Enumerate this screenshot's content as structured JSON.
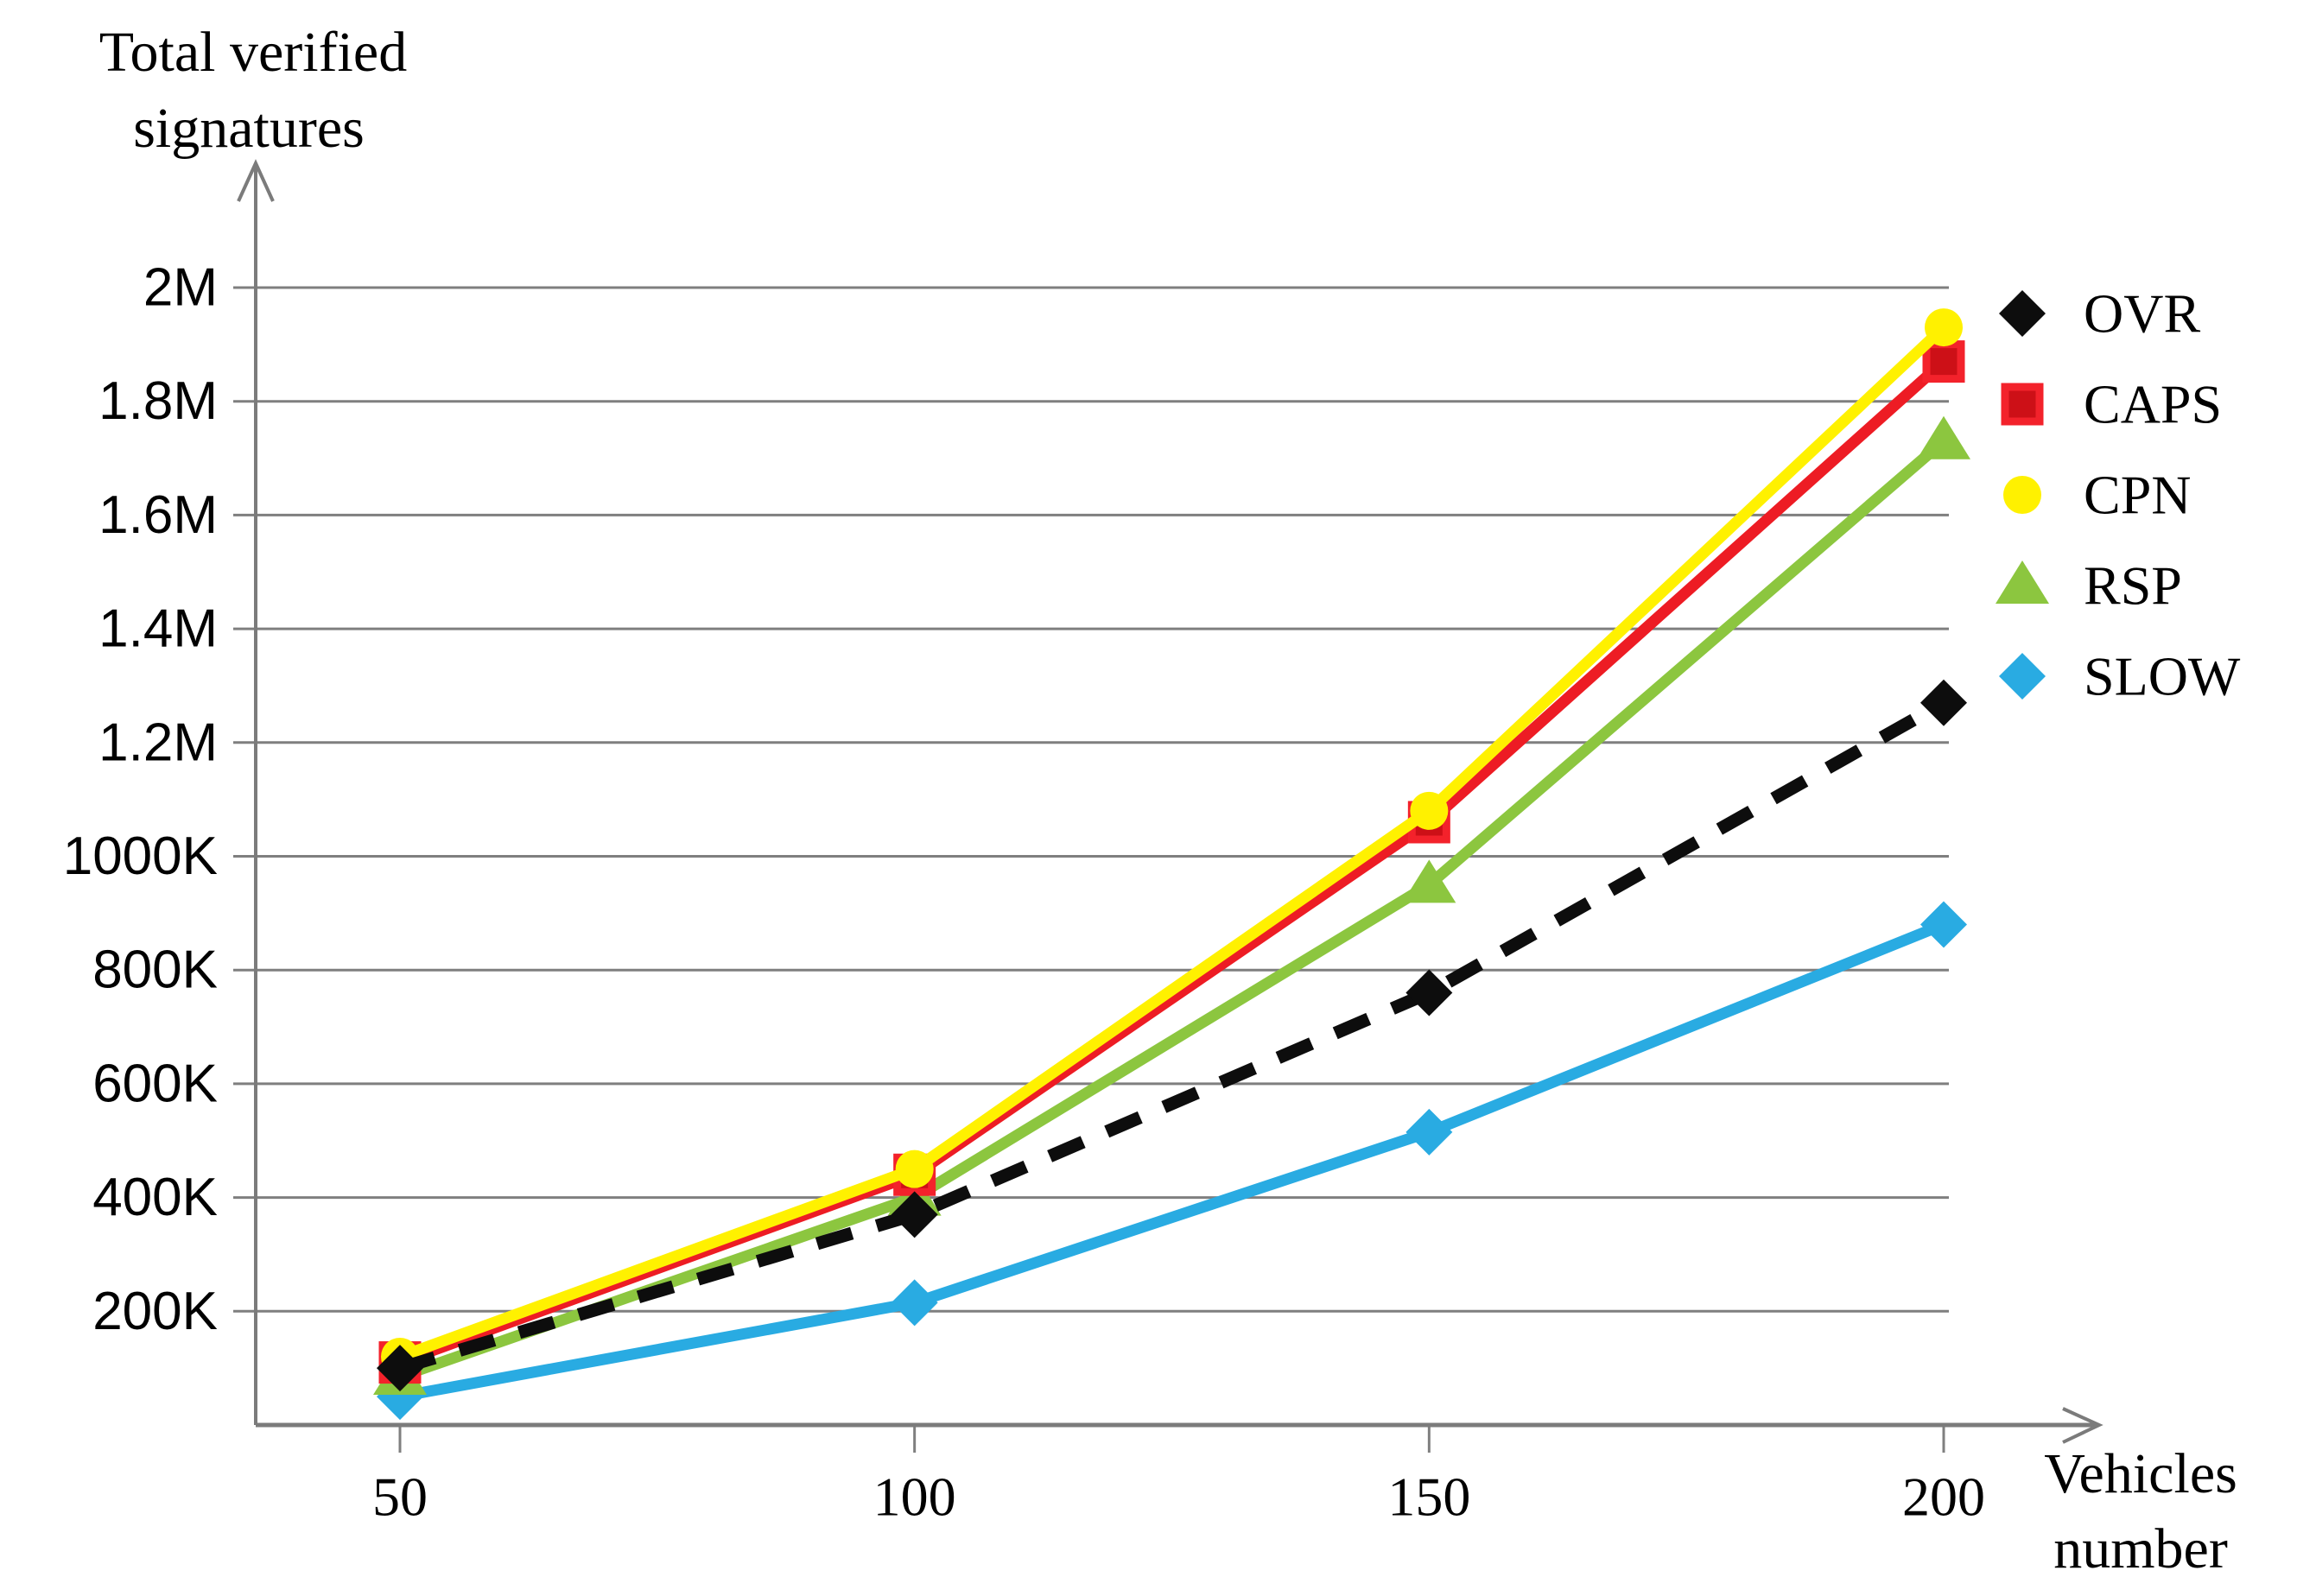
{
  "page": {
    "background": "#ffffff"
  },
  "labels": {
    "y_title_line1": "Total verified",
    "y_title_line2": "signatures",
    "x_title_line1": "Vehicles",
    "x_title_line2": "number"
  },
  "colors": {
    "axis": "#7b7b7b",
    "grid": "#7f7f7f",
    "text": "#000000",
    "ovr_black": "#0d0d0d",
    "caps_red": "#ed1c24",
    "cpn_yellow": "#fff100",
    "rsp_green": "#8cc63f",
    "slow_blue": "#29abe2"
  },
  "chart_data": {
    "type": "line",
    "title": "",
    "ylabel": "Total verified signatures",
    "xlabel": "Vehicles number",
    "x": [
      50,
      100,
      150,
      200
    ],
    "x_tick_labels": [
      "50",
      "100",
      "150",
      "200"
    ],
    "y_ticks": [
      {
        "value": 200000,
        "label": "200K"
      },
      {
        "value": 400000,
        "label": "400K"
      },
      {
        "value": 600000,
        "label": "600K"
      },
      {
        "value": 800000,
        "label": "800K"
      },
      {
        "value": 1000000,
        "label": "1000K"
      },
      {
        "value": 1200000,
        "label": "1.2M"
      },
      {
        "value": 1400000,
        "label": "1.4M"
      },
      {
        "value": 1600000,
        "label": "1.6M"
      },
      {
        "value": 1800000,
        "label": "1.8M"
      },
      {
        "value": 2000000,
        "label": "2M"
      }
    ],
    "ylim": [
      0,
      2000000
    ],
    "xlim": [
      50,
      200
    ],
    "grid": "horizontal",
    "legend_position": "right",
    "series": [
      {
        "name": "OVR",
        "color": "#0d0d0d",
        "marker": "diamond",
        "line_style": "dashed",
        "values": [
          100000,
          370000,
          760000,
          1270000
        ]
      },
      {
        "name": "CAPS",
        "color": "#ed1c24",
        "marker": "square",
        "marker_fill": "#cd1017",
        "marker_stroke": "#f3222b",
        "line_style": "solid",
        "values": [
          110000,
          440000,
          1060000,
          1870000
        ]
      },
      {
        "name": "CPN",
        "color": "#fff100",
        "marker": "circle",
        "line_style": "solid",
        "values": [
          120000,
          450000,
          1080000,
          1930000
        ]
      },
      {
        "name": "RSP",
        "color": "#8cc63f",
        "marker": "triangle",
        "line_style": "solid",
        "values": [
          85000,
          400000,
          950000,
          1730000
        ]
      },
      {
        "name": "SLOW",
        "color": "#29abe2",
        "marker": "diamond",
        "line_style": "solid",
        "values": [
          50000,
          215000,
          515000,
          880000
        ]
      }
    ]
  }
}
